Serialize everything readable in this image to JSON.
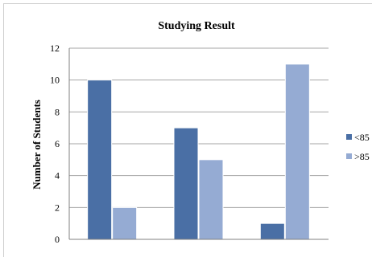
{
  "chart_data": {
    "type": "bar",
    "title": "Studying Result",
    "xlabel": "",
    "ylabel": "Number of Students",
    "categories": [
      "",
      "",
      ""
    ],
    "ylim": [
      0,
      12
    ],
    "yticks": [
      0,
      2,
      4,
      6,
      8,
      10,
      12
    ],
    "grid": true,
    "legend_position": "right",
    "series": [
      {
        "name": "<85",
        "values": [
          10,
          7,
          1
        ],
        "color": "#4a6fa5"
      },
      {
        "name": ">85",
        "values": [
          2,
          5,
          11
        ],
        "color": "#95abd3"
      }
    ]
  }
}
